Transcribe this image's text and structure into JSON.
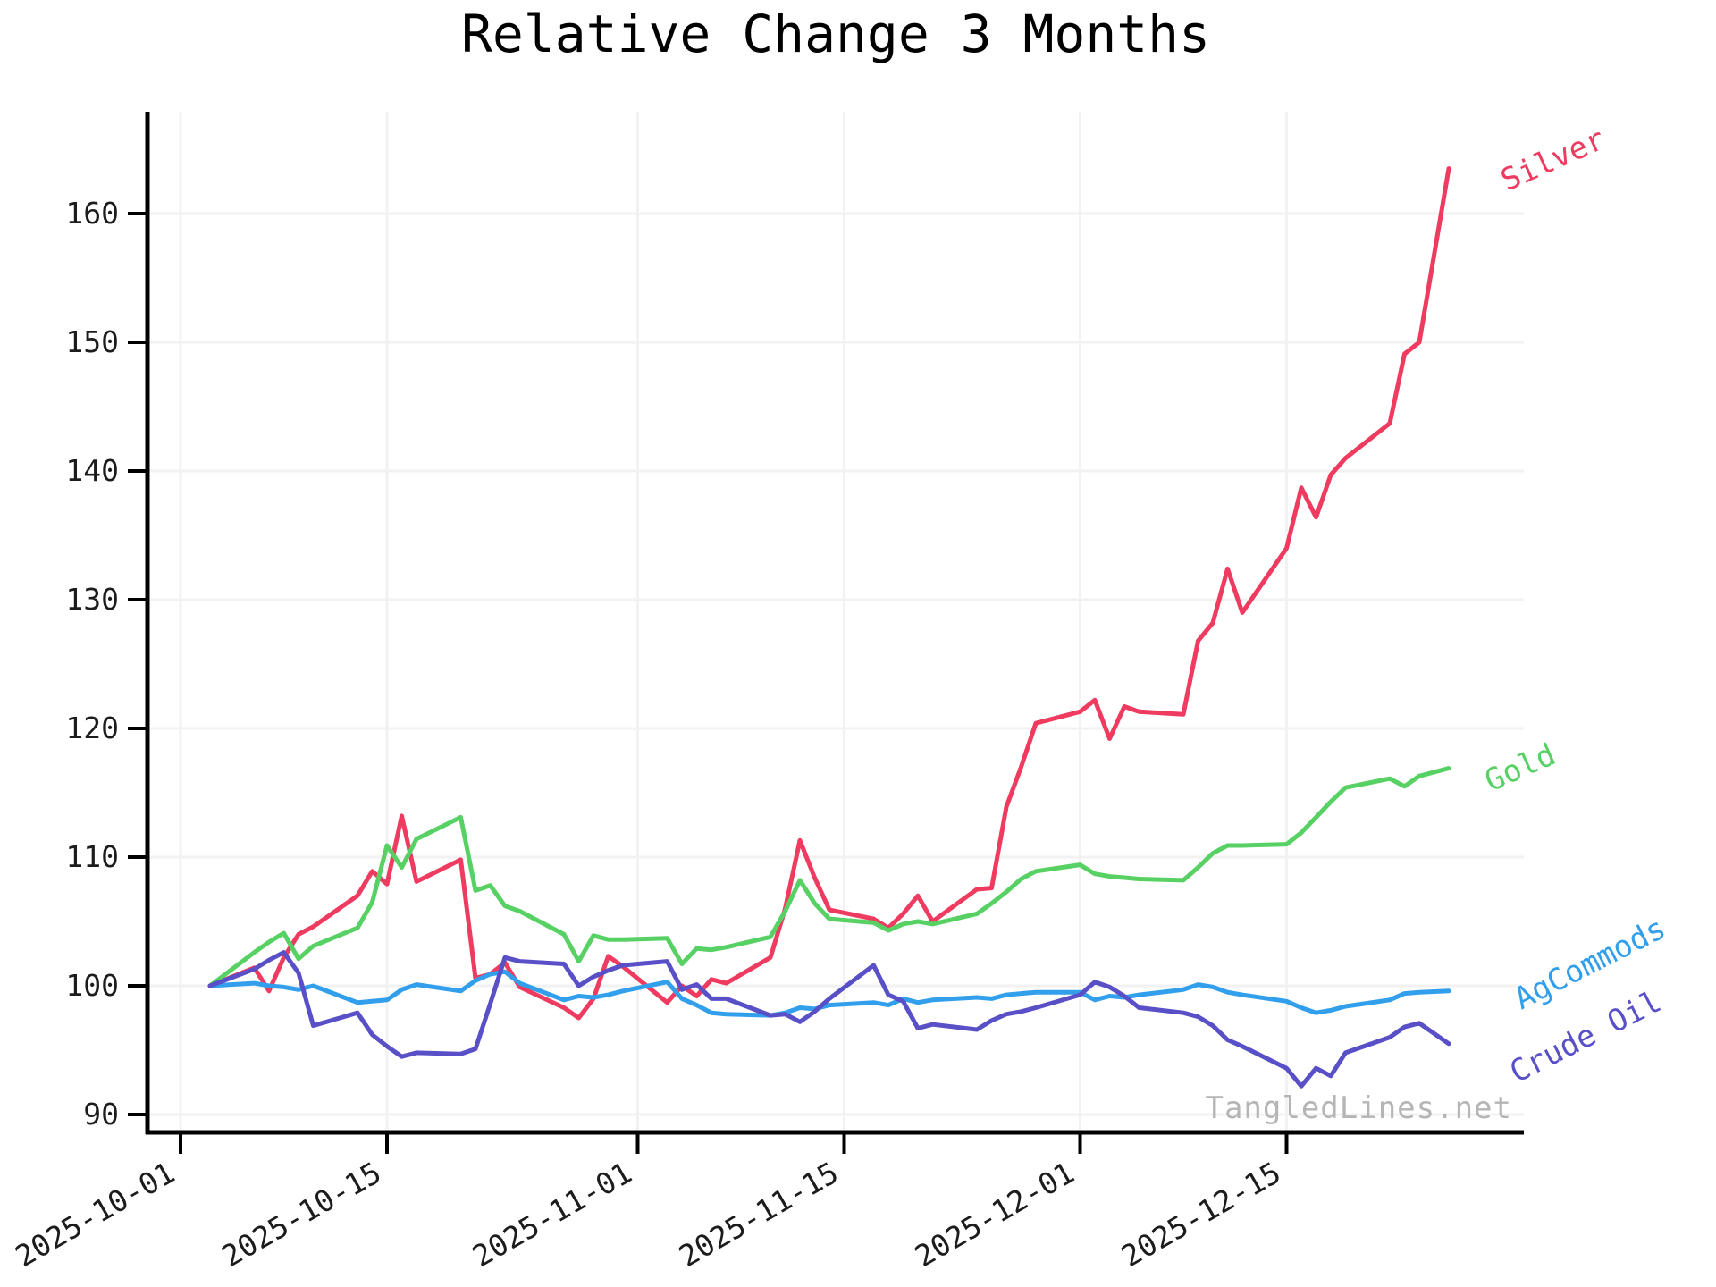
{
  "title": "Relative Change 3 Months",
  "watermark": "TangledLines.net",
  "chart_data": {
    "type": "line",
    "title": "Relative Change 3 Months",
    "xlabel": "",
    "ylabel": "",
    "grid": true,
    "legend_position": "line-end-labels-right",
    "ylim": [
      89.2,
      168.0
    ],
    "xlim": [
      "2025-09-28",
      "2025-12-31"
    ],
    "yticks": [
      90,
      100,
      110,
      120,
      130,
      140,
      150,
      160
    ],
    "xticks": [
      "2025-10-01",
      "2025-10-15",
      "2025-11-01",
      "2025-11-15",
      "2025-12-01",
      "2025-12-15"
    ],
    "x": [
      "2025-10-03",
      "2025-10-06",
      "2025-10-07",
      "2025-10-08",
      "2025-10-09",
      "2025-10-10",
      "2025-10-13",
      "2025-10-14",
      "2025-10-15",
      "2025-10-16",
      "2025-10-17",
      "2025-10-20",
      "2025-10-21",
      "2025-10-22",
      "2025-10-23",
      "2025-10-24",
      "2025-10-27",
      "2025-10-28",
      "2025-10-29",
      "2025-10-30",
      "2025-10-31",
      "2025-11-03",
      "2025-11-04",
      "2025-11-05",
      "2025-11-06",
      "2025-11-07",
      "2025-11-10",
      "2025-11-11",
      "2025-11-12",
      "2025-11-13",
      "2025-11-14",
      "2025-11-17",
      "2025-11-18",
      "2025-11-19",
      "2025-11-20",
      "2025-11-21",
      "2025-11-24",
      "2025-11-25",
      "2025-11-26",
      "2025-11-27",
      "2025-11-28",
      "2025-12-01",
      "2025-12-02",
      "2025-12-03",
      "2025-12-04",
      "2025-12-05",
      "2025-12-08",
      "2025-12-09",
      "2025-12-10",
      "2025-12-11",
      "2025-12-12",
      "2025-12-15",
      "2025-12-16",
      "2025-12-17",
      "2025-12-18",
      "2025-12-19",
      "2025-12-22",
      "2025-12-23",
      "2025-12-24",
      "2025-12-26"
    ],
    "series": [
      {
        "name": "Silver",
        "color": "#ee3b5f",
        "values": [
          100.0,
          101.4,
          99.6,
          102.2,
          104.0,
          104.6,
          107.0,
          108.9,
          107.9,
          113.2,
          108.1,
          109.8,
          100.6,
          100.9,
          101.8,
          99.9,
          98.3,
          97.5,
          99.0,
          102.3,
          101.5,
          98.7,
          100.0,
          99.2,
          100.5,
          100.2,
          102.2,
          106.0,
          111.3,
          108.4,
          105.9,
          105.2,
          104.5,
          105.6,
          107.0,
          105.0,
          107.5,
          107.6,
          113.9,
          117.0,
          120.4,
          121.3,
          122.2,
          119.2,
          121.7,
          121.3,
          121.1,
          126.8,
          128.2,
          132.4,
          129.0,
          134.0,
          138.7,
          136.4,
          139.7,
          141.0,
          143.7,
          149.1,
          150.0,
          163.5
        ]
      },
      {
        "name": "Gold",
        "color": "#57d163",
        "values": [
          100.0,
          102.6,
          103.4,
          104.1,
          102.1,
          103.1,
          104.5,
          106.5,
          110.9,
          109.2,
          111.4,
          113.1,
          107.4,
          107.8,
          106.2,
          105.8,
          104.0,
          101.9,
          103.9,
          103.6,
          103.6,
          103.7,
          101.7,
          102.9,
          102.8,
          103.0,
          103.8,
          105.8,
          108.2,
          106.4,
          105.2,
          104.9,
          104.3,
          104.8,
          105.0,
          104.8,
          105.6,
          106.4,
          107.3,
          108.3,
          108.9,
          109.4,
          108.7,
          108.5,
          108.4,
          108.3,
          108.2,
          109.2,
          110.3,
          110.9,
          110.9,
          111.0,
          111.9,
          113.1,
          114.3,
          115.4,
          116.1,
          115.5,
          116.3,
          116.9
        ]
      },
      {
        "name": "AgCommods",
        "color": "#329fec",
        "values": [
          100.0,
          100.2,
          100.0,
          99.9,
          99.7,
          100.0,
          98.7,
          98.8,
          98.9,
          99.7,
          100.1,
          99.6,
          100.4,
          100.9,
          101.1,
          100.2,
          98.9,
          99.2,
          99.1,
          99.3,
          99.6,
          100.3,
          99.0,
          98.5,
          97.9,
          97.8,
          97.7,
          97.9,
          98.3,
          98.2,
          98.5,
          98.7,
          98.5,
          99.0,
          98.7,
          98.9,
          99.1,
          99.0,
          99.3,
          99.4,
          99.5,
          99.5,
          98.9,
          99.2,
          99.1,
          99.3,
          99.7,
          100.1,
          99.9,
          99.5,
          99.3,
          98.8,
          98.3,
          97.9,
          98.1,
          98.4,
          98.9,
          99.4,
          99.5,
          99.6
        ]
      },
      {
        "name": "Crude Oil",
        "color": "#5950c8",
        "values": [
          100.0,
          101.3,
          102.0,
          102.6,
          101.0,
          96.9,
          97.9,
          96.2,
          95.3,
          94.5,
          94.8,
          94.7,
          95.1,
          98.6,
          102.2,
          101.9,
          101.7,
          100.0,
          100.7,
          101.2,
          101.6,
          101.9,
          99.7,
          100.1,
          99.0,
          99.0,
          97.7,
          97.8,
          97.2,
          98.0,
          99.0,
          101.6,
          99.3,
          98.8,
          96.7,
          97.0,
          96.6,
          97.3,
          97.8,
          98.0,
          98.3,
          99.3,
          100.3,
          99.9,
          99.2,
          98.3,
          97.9,
          97.6,
          96.9,
          95.8,
          95.3,
          93.6,
          92.2,
          93.6,
          93.0,
          94.8,
          96.0,
          96.8,
          97.1,
          95.5
        ]
      }
    ],
    "axis_color": "#000000",
    "grid_color": "#f2f2f2",
    "tick_label_color": "#1c1c1c",
    "watermark_color": "#b5b5b5"
  }
}
